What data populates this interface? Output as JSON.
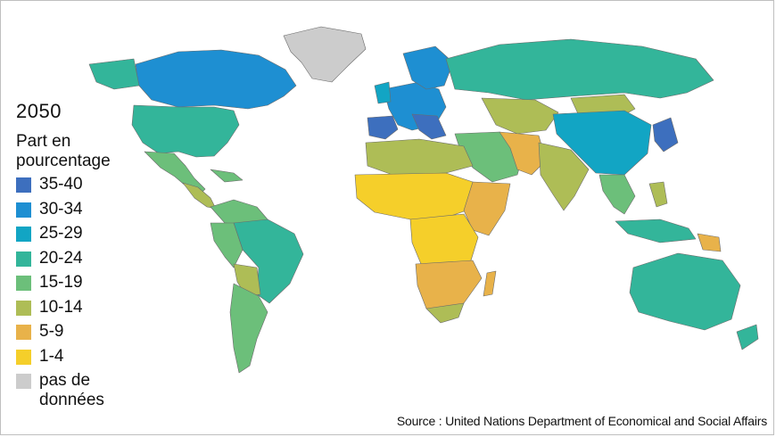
{
  "legend": {
    "year": "2050",
    "title": "Part en\npourcentage",
    "items": [
      {
        "label": "35-40",
        "color": "#3d6fbe"
      },
      {
        "label": "30-34",
        "color": "#1e8fd2"
      },
      {
        "label": "25-29",
        "color": "#12a5c4"
      },
      {
        "label": "20-24",
        "color": "#33b59a"
      },
      {
        "label": "15-19",
        "color": "#6cbf7a"
      },
      {
        "label": "10-14",
        "color": "#aebd56"
      },
      {
        "label": "5-9",
        "color": "#e8b24a"
      },
      {
        "label": "1-4",
        "color": "#f5cf2a"
      },
      {
        "label": "pas de\ndonnées",
        "color": "#cccccc"
      }
    ]
  },
  "source": "Source : United Nations Department of Economical and Social Affairs",
  "ocean_color": "#ffffff",
  "border_color": "#6b6b6b"
}
